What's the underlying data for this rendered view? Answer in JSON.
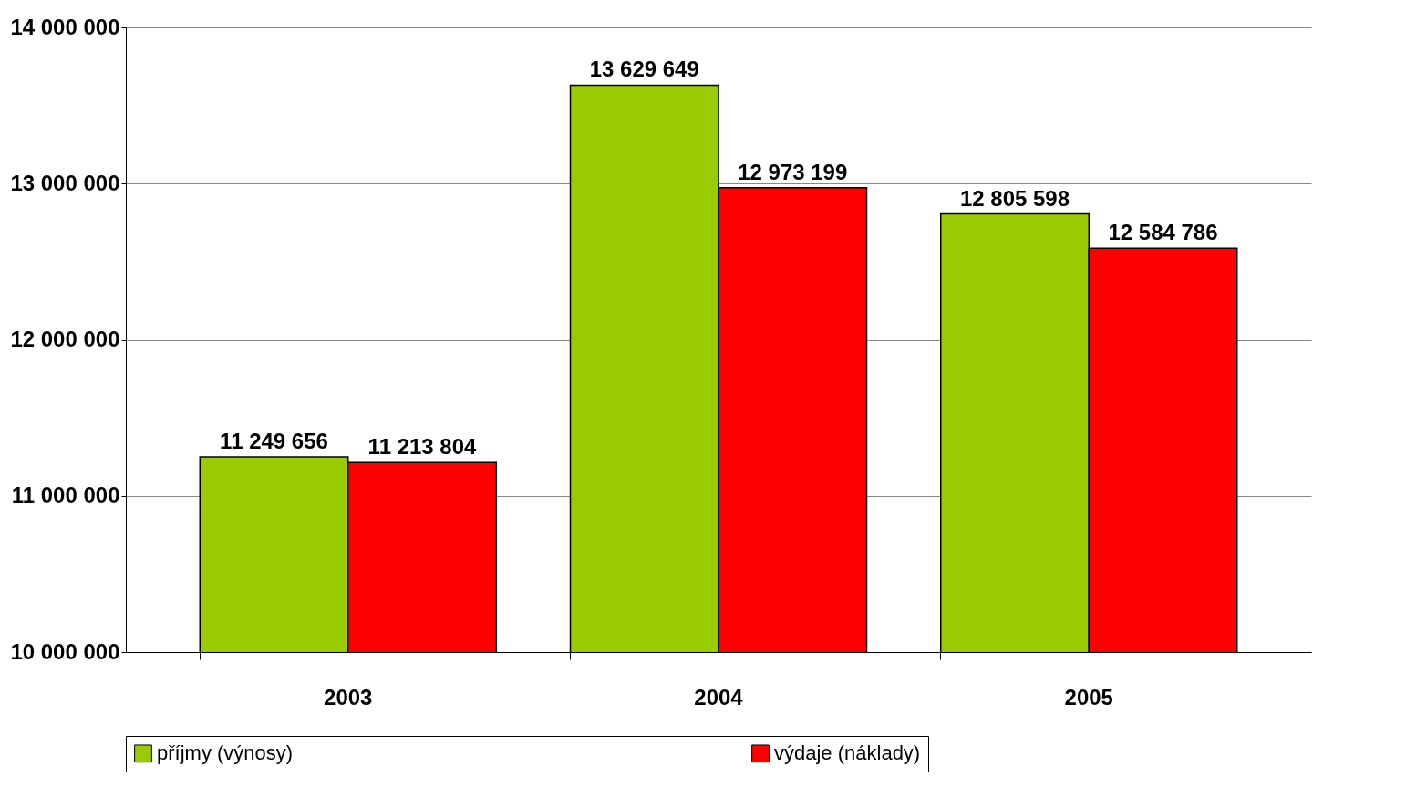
{
  "chart_data": {
    "type": "bar",
    "categories": [
      "2003",
      "2004",
      "2005"
    ],
    "series": [
      {
        "name": "příjmy (výnosy)",
        "color": "#99cc00",
        "values": [
          11249656,
          13629649,
          12805598
        ],
        "value_labels": [
          "11 249 656",
          "13 629 649",
          "12 805 598"
        ]
      },
      {
        "name": "výdaje (náklady)",
        "color": "#ff0000",
        "values": [
          11213804,
          12973199,
          12584786
        ],
        "value_labels": [
          "11 213 804",
          "12 973 199",
          "12 584 786"
        ]
      }
    ],
    "ylim": [
      10000000,
      14000000
    ],
    "yticks": [
      {
        "value": 10000000,
        "label": "10 000 000"
      },
      {
        "value": 11000000,
        "label": "11 000 000"
      },
      {
        "value": 12000000,
        "label": "12 000 000"
      },
      {
        "value": 13000000,
        "label": "13 000 000"
      },
      {
        "value": 14000000,
        "label": "14 000 000"
      }
    ],
    "grid": "y",
    "legend": "bottom"
  }
}
